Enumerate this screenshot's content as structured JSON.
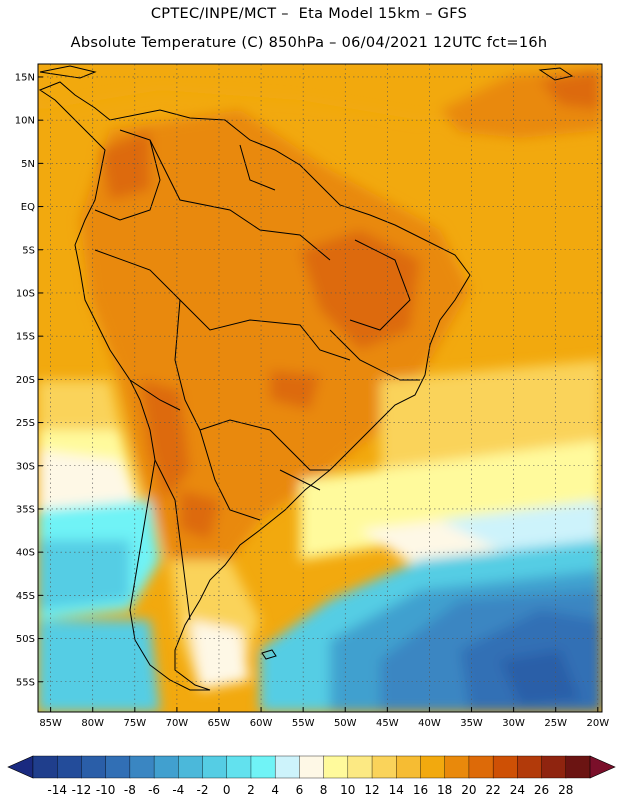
{
  "title_line1": "CPTEC/INPE/MCT –  Eta Model 15km – GFS",
  "title_line2": "Absolute Temperature (C) 850hPa – 06/04/2021 12UTC fct=16h",
  "lat_labels": [
    "15N",
    "10N",
    "5N",
    "EQ",
    "5S",
    "10S",
    "15S",
    "20S",
    "25S",
    "30S",
    "35S",
    "40S",
    "45S",
    "50S",
    "55S"
  ],
  "lat_values": [
    15,
    10,
    5,
    0,
    -5,
    -10,
    -15,
    -20,
    -25,
    -30,
    -35,
    -40,
    -45,
    -50,
    -55
  ],
  "lon_labels": [
    "85W",
    "80W",
    "75W",
    "70W",
    "65W",
    "60W",
    "55W",
    "50W",
    "45W",
    "40W",
    "35W",
    "30W",
    "25W",
    "20W"
  ],
  "lon_values": [
    -85,
    -80,
    -75,
    -70,
    -65,
    -60,
    -55,
    -50,
    -45,
    -40,
    -35,
    -30,
    -25,
    -20
  ],
  "colorbar": {
    "labels": [
      "-14",
      "-12",
      "-10",
      "-8",
      "-6",
      "-4",
      "-2",
      "0",
      "2",
      "4",
      "6",
      "8",
      "10",
      "12",
      "14",
      "16",
      "18",
      "20",
      "22",
      "24",
      "26",
      "28"
    ],
    "colors": [
      "#1f3e8c",
      "#234c9a",
      "#2a5ea8",
      "#316fb5",
      "#3a86c2",
      "#41a0cf",
      "#4bb8da",
      "#55cde4",
      "#62e1ee",
      "#70f3f6",
      "#cdf3fb",
      "#fef8e6",
      "#fffa9c",
      "#fce983",
      "#fad35a",
      "#f6bc33",
      "#f2a90e",
      "#e9890b",
      "#dd6a08",
      "#ce5005",
      "#b23a0a",
      "#8f240f",
      "#6b1412"
    ],
    "low_arrow_color": "#1a2a80",
    "high_arrow_color": "#7a0f2a"
  },
  "colors": {
    "background_warm": "#f2a90e",
    "continent_hot": "#e9890b",
    "hot_core": "#dd6a08",
    "cool_ocean": "#55cde4",
    "deep_cold": "#316fb5"
  }
}
